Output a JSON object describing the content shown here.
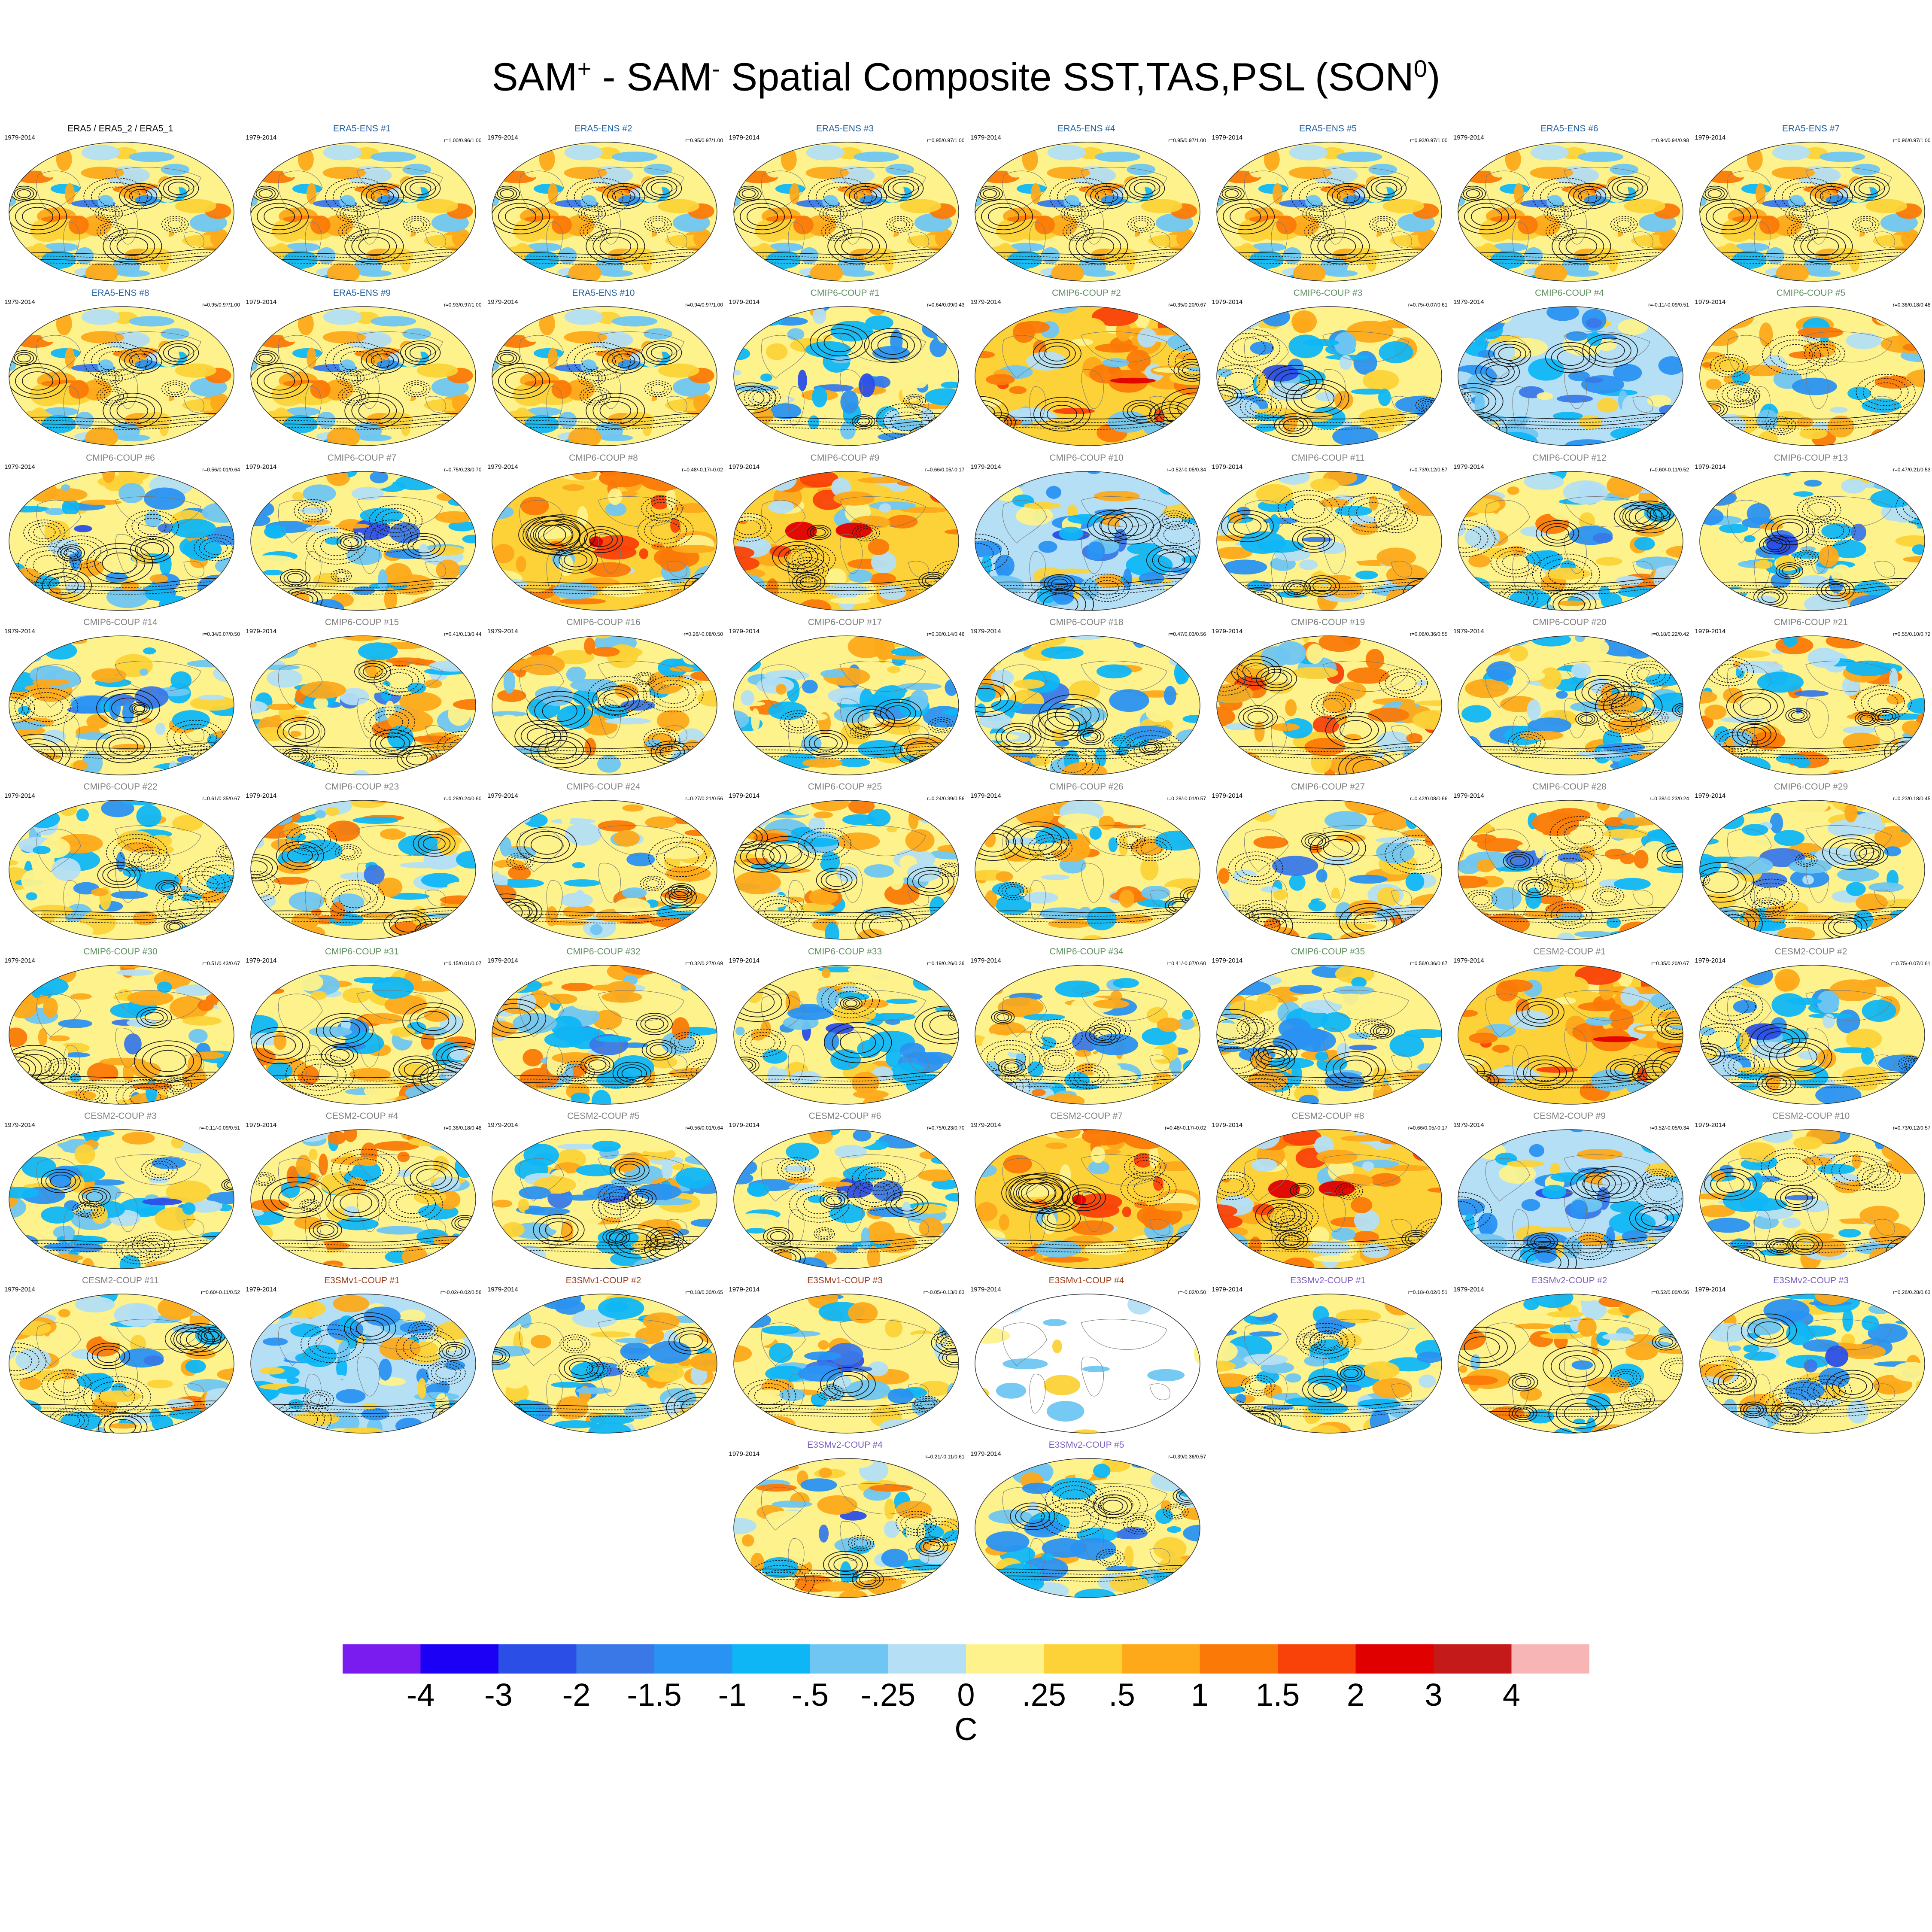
{
  "title": {
    "parts": [
      "SAM",
      "+",
      " - SAM",
      "-",
      " Spatial Composite SST,TAS,PSL (SON",
      "0",
      ")"
    ]
  },
  "panels": [
    {
      "name": "ERA5 / ERA5_2 / ERA5_1",
      "period": "1979-2014",
      "r": "",
      "group": "obs",
      "color": "#000000",
      "bias": 0.2,
      "seed": 1
    },
    {
      "name": "ERA5-ENS   #1",
      "period": "1979-2014",
      "r": "r=1.00/0.96/1.00",
      "group": "era5",
      "color": "#1f5f9f",
      "bias": 0.2,
      "seed": 1
    },
    {
      "name": "ERA5-ENS   #2",
      "period": "1979-2014",
      "r": "r=0.95/0.97/1.00",
      "group": "era5",
      "color": "#1f5f9f",
      "bias": 0.2,
      "seed": 1
    },
    {
      "name": "ERA5-ENS   #3",
      "period": "1979-2014",
      "r": "r=0.95/0.97/1.00",
      "group": "era5",
      "color": "#1f5f9f",
      "bias": 0.2,
      "seed": 1
    },
    {
      "name": "ERA5-ENS   #4",
      "period": "1979-2014",
      "r": "r=0.95/0.97/1.00",
      "group": "era5",
      "color": "#1f5f9f",
      "bias": 0.2,
      "seed": 1
    },
    {
      "name": "ERA5-ENS   #5",
      "period": "1979-2014",
      "r": "r=0.93/0.97/1.00",
      "group": "era5",
      "color": "#1f5f9f",
      "bias": 0.2,
      "seed": 1
    },
    {
      "name": "ERA5-ENS   #6",
      "period": "1979-2014",
      "r": "r=0.94/0.94/0.98",
      "group": "era5",
      "color": "#1f5f9f",
      "bias": 0.2,
      "seed": 1
    },
    {
      "name": "ERA5-ENS   #7",
      "period": "1979-2014",
      "r": "r=0.96/0.97/1.00",
      "group": "era5",
      "color": "#1f5f9f",
      "bias": 0.2,
      "seed": 1
    },
    {
      "name": "ERA5-ENS   #8",
      "period": "1979-2014",
      "r": "r=0.95/0.97/1.00",
      "group": "era5",
      "color": "#1f5f9f",
      "bias": 0.2,
      "seed": 1
    },
    {
      "name": "ERA5-ENS   #9",
      "period": "1979-2014",
      "r": "r=0.93/0.97/1.00",
      "group": "era5",
      "color": "#1f5f9f",
      "bias": 0.2,
      "seed": 1
    },
    {
      "name": "ERA5-ENS   #10",
      "period": "1979-2014",
      "r": "r=0.94/0.97/1.00",
      "group": "era5",
      "color": "#1f5f9f",
      "bias": 0.2,
      "seed": 1
    },
    {
      "name": "CMIP6-COUP   #1",
      "period": "1979-2014",
      "r": "r=0.64/0.09/0.43",
      "group": "cmip6",
      "color": "#5f8f5f",
      "bias": -0.3,
      "seed": 11
    },
    {
      "name": "CMIP6-COUP   #2",
      "period": "1979-2014",
      "r": "r=0.35/0.20/0.67",
      "group": "cmip6",
      "color": "#5f8f5f",
      "bias": 0.6,
      "seed": 12
    },
    {
      "name": "CMIP6-COUP   #3",
      "period": "1979-2014",
      "r": "r=0.75/-0.07/0.61",
      "group": "cmip6",
      "color": "#5f8f5f",
      "bias": -0.2,
      "seed": 13
    },
    {
      "name": "CMIP6-COUP   #4",
      "period": "1979-2014",
      "r": "r=-0.11/-0.09/0.51",
      "group": "cmip6",
      "color": "#5f8f5f",
      "bias": -0.6,
      "seed": 14
    },
    {
      "name": "CMIP6-COUP   #5",
      "period": "1979-2014",
      "r": "r=0.36/0.18/0.48",
      "group": "cmip6",
      "color": "#5f8f5f",
      "bias": 0.3,
      "seed": 15
    },
    {
      "name": "CMIP6-COUP   #6",
      "period": "1979-2014",
      "r": "r=0.56/0.01/0.64",
      "group": "cmip6",
      "color": "#7f7f7f",
      "bias": -0.2,
      "seed": 16
    },
    {
      "name": "CMIP6-COUP   #7",
      "period": "1979-2014",
      "r": "r=0.75/0.23/0.70",
      "group": "cmip6",
      "color": "#7f7f7f",
      "bias": -0.1,
      "seed": 17
    },
    {
      "name": "CMIP6-COUP   #8",
      "period": "1979-2014",
      "r": "r=0.48/-0.17/-0.02",
      "group": "cmip6",
      "color": "#7f7f7f",
      "bias": 0.6,
      "seed": 18
    },
    {
      "name": "CMIP6-COUP   #9",
      "period": "1979-2014",
      "r": "r=0.66/0.05/-0.17",
      "group": "cmip6",
      "color": "#7f7f7f",
      "bias": 0.7,
      "seed": 19
    },
    {
      "name": "CMIP6-COUP   #10",
      "period": "1979-2014",
      "r": "r=0.52/-0.05/0.34",
      "group": "cmip6",
      "color": "#7f7f7f",
      "bias": -0.4,
      "seed": 20
    },
    {
      "name": "CMIP6-COUP   #11",
      "period": "1979-2014",
      "r": "r=0.73/0.12/0.57",
      "group": "cmip6",
      "color": "#7f7f7f",
      "bias": -0.1,
      "seed": 21
    },
    {
      "name": "CMIP6-COUP   #12",
      "period": "1979-2014",
      "r": "r=0.60/-0.11/0.52",
      "group": "cmip6",
      "color": "#7f7f7f",
      "bias": 0.1,
      "seed": 22
    },
    {
      "name": "CMIP6-COUP   #13",
      "period": "1979-2014",
      "r": "r=0.47/0.21/0.53",
      "group": "cmip6",
      "color": "#7f7f7f",
      "bias": -0.3,
      "seed": 23
    },
    {
      "name": "CMIP6-COUP   #14",
      "period": "1979-2014",
      "r": "r=0.34/0.07/0.50",
      "group": "cmip6",
      "color": "#7f7f7f",
      "bias": -0.2,
      "seed": 24
    },
    {
      "name": "CMIP6-COUP   #15",
      "period": "1979-2014",
      "r": "r=0.41/0.13/0.44",
      "group": "cmip6",
      "color": "#7f7f7f",
      "bias": 0.2,
      "seed": 25
    },
    {
      "name": "CMIP6-COUP   #16",
      "period": "1979-2014",
      "r": "r=0.26/-0.08/0.50",
      "group": "cmip6",
      "color": "#7f7f7f",
      "bias": 0.4,
      "seed": 26
    },
    {
      "name": "CMIP6-COUP   #17",
      "period": "1979-2014",
      "r": "r=0.30/0.14/0.46",
      "group": "cmip6",
      "color": "#7f7f7f",
      "bias": 0.0,
      "seed": 27
    },
    {
      "name": "CMIP6-COUP   #18",
      "period": "1979-2014",
      "r": "r=0.47/0.03/0.56",
      "group": "cmip6",
      "color": "#7f7f7f",
      "bias": -0.3,
      "seed": 28
    },
    {
      "name": "CMIP6-COUP   #19",
      "period": "1979-2014",
      "r": "r=0.06/0.36/0.55",
      "group": "cmip6",
      "color": "#7f7f7f",
      "bias": 0.5,
      "seed": 29
    },
    {
      "name": "CMIP6-COUP   #20",
      "period": "1979-2014",
      "r": "r=0.18/0.22/0.42",
      "group": "cmip6",
      "color": "#7f7f7f",
      "bias": -0.2,
      "seed": 30
    },
    {
      "name": "CMIP6-COUP   #21",
      "period": "1979-2014",
      "r": "r=0.55/0.10/0.72",
      "group": "cmip6",
      "color": "#7f7f7f",
      "bias": 0.2,
      "seed": 31
    },
    {
      "name": "CMIP6-COUP   #22",
      "period": "1979-2014",
      "r": "r=0.61/0.35/0.67",
      "group": "cmip6",
      "color": "#7f7f7f",
      "bias": -0.2,
      "seed": 32
    },
    {
      "name": "CMIP6-COUP   #23",
      "period": "1979-2014",
      "r": "r=0.28/0.24/0.60",
      "group": "cmip6",
      "color": "#7f7f7f",
      "bias": 0.4,
      "seed": 33
    },
    {
      "name": "CMIP6-COUP   #24",
      "period": "1979-2014",
      "r": "r=0.27/0.21/0.56",
      "group": "cmip6",
      "color": "#7f7f7f",
      "bias": 0.3,
      "seed": 34
    },
    {
      "name": "CMIP6-COUP   #25",
      "period": "1979-2014",
      "r": "r=0.24/0.39/0.56",
      "group": "cmip6",
      "color": "#7f7f7f",
      "bias": 0.1,
      "seed": 35
    },
    {
      "name": "CMIP6-COUP   #26",
      "period": "1979-2014",
      "r": "r=0.28/-0.01/0.57",
      "group": "cmip6",
      "color": "#7f7f7f",
      "bias": 0.1,
      "seed": 36
    },
    {
      "name": "CMIP6-COUP   #27",
      "period": "1979-2014",
      "r": "r=0.42/0.08/0.66",
      "group": "cmip6",
      "color": "#7f7f7f",
      "bias": 0.3,
      "seed": 37
    },
    {
      "name": "CMIP6-COUP   #28",
      "period": "1979-2014",
      "r": "r=0.38/-0.23/0.24",
      "group": "cmip6",
      "color": "#7f7f7f",
      "bias": 0.3,
      "seed": 38
    },
    {
      "name": "CMIP6-COUP   #29",
      "period": "1979-2014",
      "r": "r=0.23/0.18/0.45",
      "group": "cmip6",
      "color": "#7f7f7f",
      "bias": -0.1,
      "seed": 39
    },
    {
      "name": "CMIP6-COUP   #30",
      "period": "1979-2014",
      "r": "r=0.51/0.43/0.67",
      "group": "cmip6",
      "color": "#5f8f5f",
      "bias": 0.0,
      "seed": 40
    },
    {
      "name": "CMIP6-COUP   #31",
      "period": "1979-2014",
      "r": "r=0.15/0.01/0.07",
      "group": "cmip6",
      "color": "#5f8f5f",
      "bias": 0.3,
      "seed": 41
    },
    {
      "name": "CMIP6-COUP   #32",
      "period": "1979-2014",
      "r": "r=0.32/0.27/0.69",
      "group": "cmip6",
      "color": "#5f8f5f",
      "bias": 0.2,
      "seed": 42
    },
    {
      "name": "CMIP6-COUP   #33",
      "period": "1979-2014",
      "r": "r=0.19/0.26/0.36",
      "group": "cmip6",
      "color": "#5f8f5f",
      "bias": -0.2,
      "seed": 43
    },
    {
      "name": "CMIP6-COUP   #34",
      "period": "1979-2014",
      "r": "r=0.41/-0.07/0.60",
      "group": "cmip6",
      "color": "#5f8f5f",
      "bias": 0.0,
      "seed": 44
    },
    {
      "name": "CMIP6-COUP   #35",
      "period": "1979-2014",
      "r": "r=0.56/0.36/0.67",
      "group": "cmip6",
      "color": "#5f8f5f",
      "bias": -0.2,
      "seed": 45
    },
    {
      "name": "CESM2-COUP   #1",
      "period": "1979-2014",
      "r": "r=0.35/0.20/0.67",
      "group": "cesm2",
      "color": "#7f7f7f",
      "bias": 0.6,
      "seed": 12
    },
    {
      "name": "CESM2-COUP   #2",
      "period": "1979-2014",
      "r": "r=0.75/-0.07/0.61",
      "group": "cesm2",
      "color": "#7f7f7f",
      "bias": -0.2,
      "seed": 13
    },
    {
      "name": "CESM2-COUP   #3",
      "period": "1979-2014",
      "r": "r=-0.11/-0.09/0.51",
      "group": "cesm2",
      "color": "#7f7f7f",
      "bias": -0.3,
      "seed": 46
    },
    {
      "name": "CESM2-COUP   #4",
      "period": "1979-2014",
      "r": "r=0.36/0.18/0.48",
      "group": "cesm2",
      "color": "#7f7f7f",
      "bias": 0.3,
      "seed": 47
    },
    {
      "name": "CESM2-COUP   #5",
      "period": "1979-2014",
      "r": "r=0.56/0.01/0.64",
      "group": "cesm2",
      "color": "#7f7f7f",
      "bias": -0.1,
      "seed": 48
    },
    {
      "name": "CESM2-COUP   #6",
      "period": "1979-2014",
      "r": "r=0.75/0.23/0.70",
      "group": "cesm2",
      "color": "#7f7f7f",
      "bias": -0.2,
      "seed": 17
    },
    {
      "name": "CESM2-COUP   #7",
      "period": "1979-2014",
      "r": "r=0.48/-0.17/-0.02",
      "group": "cesm2",
      "color": "#7f7f7f",
      "bias": 0.6,
      "seed": 18
    },
    {
      "name": "CESM2-COUP   #8",
      "period": "1979-2014",
      "r": "r=0.66/0.05/-0.17",
      "group": "cesm2",
      "color": "#7f7f7f",
      "bias": 0.7,
      "seed": 19
    },
    {
      "name": "CESM2-COUP   #9",
      "period": "1979-2014",
      "r": "r=0.52/-0.05/0.34",
      "group": "cesm2",
      "color": "#7f7f7f",
      "bias": -0.4,
      "seed": 20
    },
    {
      "name": "CESM2-COUP   #10",
      "period": "1979-2014",
      "r": "r=0.73/0.12/0.57",
      "group": "cesm2",
      "color": "#7f7f7f",
      "bias": -0.1,
      "seed": 21
    },
    {
      "name": "CESM2-COUP   #11",
      "period": "1979-2014",
      "r": "r=0.60/-0.11/0.52",
      "group": "cesm2",
      "color": "#7f7f7f",
      "bias": 0.1,
      "seed": 22
    },
    {
      "name": "E3SMv1-COUP #1",
      "period": "1979-2014",
      "r": "r=-0.02/-0.02/0.56",
      "group": "e3smv1",
      "color": "#9f3f1f",
      "bias": -0.4,
      "seed": 50
    },
    {
      "name": "E3SMv1-COUP #2",
      "period": "1979-2014",
      "r": "r=0.18/0.30/0.65",
      "group": "e3smv1",
      "color": "#9f3f1f",
      "bias": -0.3,
      "seed": 51
    },
    {
      "name": "E3SMv1-COUP #3",
      "period": "1979-2014",
      "r": "r=-0.05/-0.13/0.63",
      "group": "e3smv1",
      "color": "#9f3f1f",
      "bias": -0.1,
      "seed": 52
    },
    {
      "name": "E3SMv1-COUP #4",
      "period": "1979-2014",
      "r": "r=-0.02/0.50",
      "group": "e3smv1",
      "color": "#9f3f1f",
      "bias": 0.0,
      "seed": 53,
      "sparse": true
    },
    {
      "name": "E3SMv2-COUP #1",
      "period": "1979-2014",
      "r": "r=0.18/-0.02/0.51",
      "group": "e3smv2",
      "color": "#7f5fbf",
      "bias": -0.3,
      "seed": 54
    },
    {
      "name": "E3SMv2-COUP #2",
      "period": "1979-2014",
      "r": "r=0.52/0.00/0.56",
      "group": "e3smv2",
      "color": "#7f5fbf",
      "bias": 0.1,
      "seed": 55
    },
    {
      "name": "E3SMv2-COUP #3",
      "period": "1979-2014",
      "r": "r=0.26/0.28/0.63",
      "group": "e3smv2",
      "color": "#7f5fbf",
      "bias": -0.2,
      "seed": 56
    },
    {
      "name": "E3SMv2-COUP #4",
      "period": "1979-2014",
      "r": "r=0.21/-0.11/0.61",
      "group": "e3smv2",
      "color": "#7f5fbf",
      "bias": 0.0,
      "seed": 57
    },
    {
      "name": "E3SMv2-COUP #5",
      "period": "1979-2014",
      "r": "r=0.39/0.36/0.57",
      "group": "e3smv2",
      "color": "#7f5fbf",
      "bias": -0.3,
      "seed": 58
    }
  ],
  "colorbar": {
    "colors": [
      "#7a1cf0",
      "#1c00f5",
      "#2a4ee6",
      "#3a78e8",
      "#2a92f2",
      "#0fb6f5",
      "#6fc6f2",
      "#b4dff5",
      "#fdf28c",
      "#fcd238",
      "#fda91a",
      "#fb7a07",
      "#f9420a",
      "#e00000",
      "#c41a1a",
      "#f7b5b5"
    ],
    "labels": [
      "-4",
      "-3",
      "-2",
      "-1.5",
      "-1",
      "-.5",
      "-.25",
      "0",
      ".25",
      ".5",
      "1",
      "1.5",
      "2",
      "3",
      "4"
    ],
    "units": "C"
  }
}
